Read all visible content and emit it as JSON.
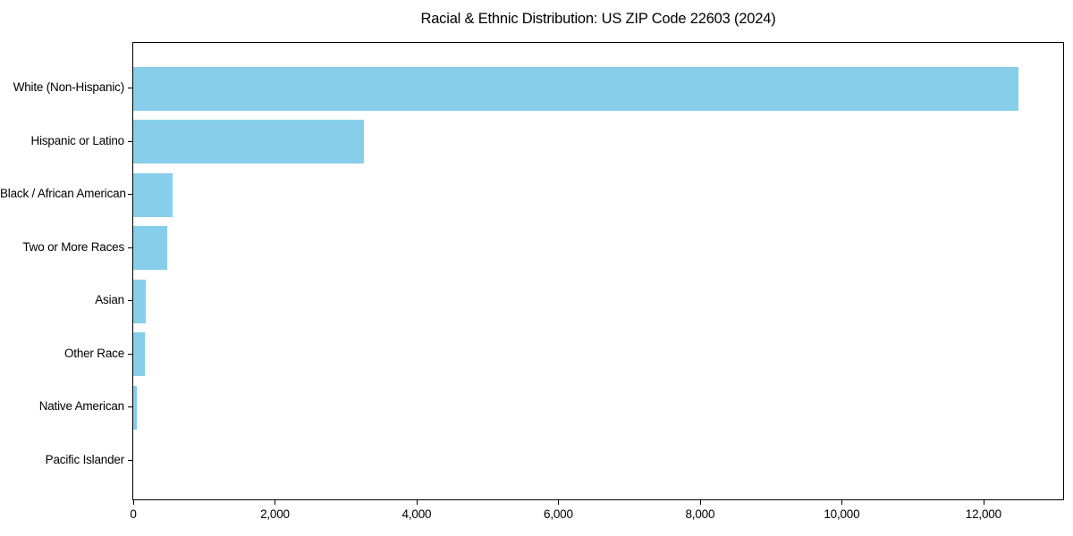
{
  "chart_data": {
    "type": "bar",
    "orientation": "horizontal",
    "title": "Racial & Ethnic Distribution: US ZIP Code 22603 (2024)",
    "categories": [
      "White (Non-Hispanic)",
      "Hispanic or Latino",
      "Black / African American",
      "Two or More Races",
      "Asian",
      "Other Race",
      "Native American",
      "Pacific Islander"
    ],
    "values": [
      12500,
      3250,
      560,
      480,
      175,
      160,
      50,
      0
    ],
    "xlabel": "",
    "ylabel": "",
    "xlim": [
      0,
      13125
    ],
    "xticks": [
      0,
      2000,
      4000,
      6000,
      8000,
      10000,
      12000
    ],
    "xtick_labels": [
      "0",
      "2,000",
      "4,000",
      "6,000",
      "8,000",
      "10,000",
      "12,000"
    ],
    "bar_color": "#87CEEB",
    "axis_color": "#000000",
    "text_color": "#000000",
    "background_color": "#FFFFFF",
    "grid": false,
    "legend": "none"
  }
}
